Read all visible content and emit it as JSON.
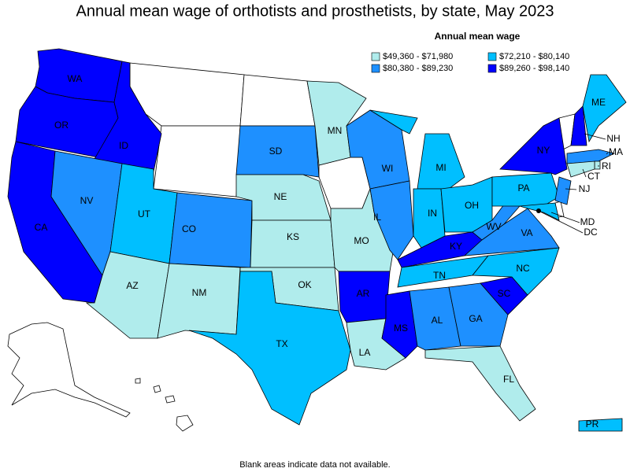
{
  "title": "Annual mean wage of orthotists and prosthetists, by state, May 2023",
  "legend": {
    "title": "Annual mean wage",
    "items": [
      {
        "label": "$49,360 - $71,980",
        "color": "#b0ecec"
      },
      {
        "label": "$72,210 - $80,140",
        "color": "#00bfff"
      },
      {
        "label": "$80,380 - $89,230",
        "color": "#1e90ff"
      },
      {
        "label": "$89,260 - $98,140",
        "color": "#0000ff"
      }
    ]
  },
  "states": [
    {
      "label": "WA",
      "color": "#0000ff"
    },
    {
      "label": "OR",
      "color": "#0000ff"
    },
    {
      "label": "ID",
      "color": "#0000ff"
    },
    {
      "label": "CA",
      "color": "#0000ff"
    },
    {
      "label": "NV",
      "color": "#1e90ff"
    },
    {
      "label": "UT",
      "color": "#00bfff"
    },
    {
      "label": "AZ",
      "color": "#b0ecec"
    },
    {
      "label": "CO",
      "color": "#1e90ff"
    },
    {
      "label": "NM",
      "color": "#b0ecec"
    },
    {
      "label": "SD",
      "color": "#1e90ff"
    },
    {
      "label": "NE",
      "color": "#b0ecec"
    },
    {
      "label": "KS",
      "color": "#b0ecec"
    },
    {
      "label": "OK",
      "color": "#b0ecec"
    },
    {
      "label": "TX",
      "color": "#00bfff"
    },
    {
      "label": "MN",
      "color": "#b0ecec"
    },
    {
      "label": "MO",
      "color": "#b0ecec"
    },
    {
      "label": "AR",
      "color": "#0000ff"
    },
    {
      "label": "LA",
      "color": "#b0ecec"
    },
    {
      "label": "WI",
      "color": "#1e90ff"
    },
    {
      "label": "IL",
      "color": "#1e90ff"
    },
    {
      "label": "MI",
      "color": "#00bfff"
    },
    {
      "label": "IN",
      "color": "#00bfff"
    },
    {
      "label": "OH",
      "color": "#00bfff"
    },
    {
      "label": "KY",
      "color": "#0000ff"
    },
    {
      "label": "TN",
      "color": "#00bfff"
    },
    {
      "label": "MS",
      "color": "#0000ff"
    },
    {
      "label": "AL",
      "color": "#1e90ff"
    },
    {
      "label": "GA",
      "color": "#1e90ff"
    },
    {
      "label": "FL",
      "color": "#b0ecec"
    },
    {
      "label": "SC",
      "color": "#0000ff"
    },
    {
      "label": "NC",
      "color": "#00bfff"
    },
    {
      "label": "VA",
      "color": "#1e90ff"
    },
    {
      "label": "WV",
      "color": "#1e90ff"
    },
    {
      "label": "PA",
      "color": "#00bfff"
    },
    {
      "label": "NY",
      "color": "#0000ff"
    },
    {
      "label": "ME",
      "color": "#00bfff"
    },
    {
      "label": "NH",
      "color": "#0000ff"
    },
    {
      "label": "MA",
      "color": "#1e90ff"
    },
    {
      "label": "RI",
      "color": "#b0ecec"
    },
    {
      "label": "CT",
      "color": "#b0ecec"
    },
    {
      "label": "NJ",
      "color": "#1e90ff"
    },
    {
      "label": "MD",
      "color": "#00bfff"
    },
    {
      "label": "DC",
      "color": "#000000"
    },
    {
      "label": "PR",
      "color": "#00bfff"
    }
  ],
  "footnote": "Blank areas indicate data not available."
}
